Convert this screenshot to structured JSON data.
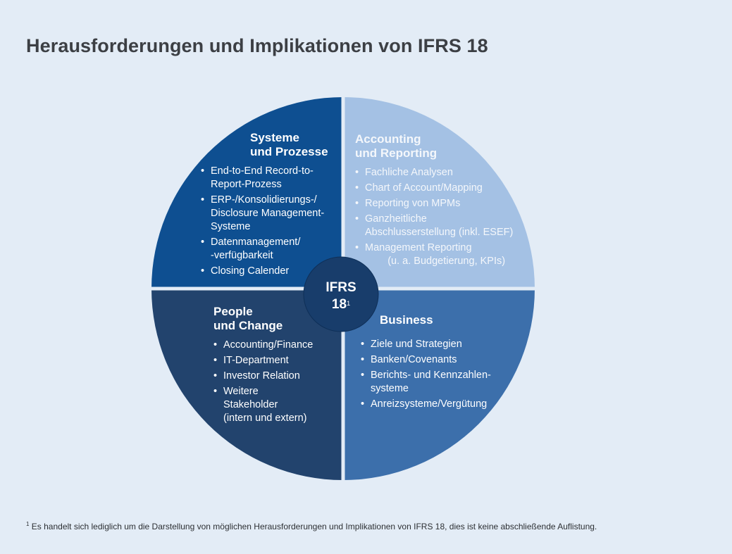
{
  "title": "Herausforderungen und Implikationen von IFRS 18",
  "colors": {
    "background": "#e3ecf6",
    "systeme": "#0e4f91",
    "accounting": "#a4c1e4",
    "people": "#22436d",
    "business": "#3c6fab",
    "center": "#183d6b"
  },
  "center": {
    "label": "IFRS",
    "number": "18",
    "sup": "1"
  },
  "quadrants": {
    "systeme": {
      "heading": [
        "Systeme",
        "und Prozesse"
      ],
      "items": [
        "End-to-End Record-to-\nReport-Prozess",
        "ERP-/Konsolidierungs-/\nDisclosure Management-\nSysteme",
        "Datenmanagement/\n-verfügbarkeit",
        "Closing Calender"
      ]
    },
    "accounting": {
      "heading": [
        "Accounting",
        "und Reporting"
      ],
      "items": [
        "Fachliche Analysen",
        "Chart of Account/Mapping",
        "Reporting von MPMs",
        "Ganzheitliche\nAbschlusserstellung (inkl. ESEF)",
        "Management Reporting\n        (u. a. Budgetierung, KPIs)"
      ]
    },
    "people": {
      "heading": [
        "People",
        "und Change"
      ],
      "items": [
        "Accounting/Finance",
        "IT-Department",
        "Investor Relation",
        "Weitere\nStakeholder\n(intern und extern)"
      ]
    },
    "business": {
      "heading": [
        "Business"
      ],
      "items": [
        "Ziele und Strategien",
        "Banken/Covenants",
        "Berichts- und Kennzahlen-\nsysteme",
        "Anreizsysteme/Vergütung"
      ]
    }
  },
  "footnote": {
    "marker": "1",
    "text": "Es handelt sich lediglich um die Darstellung von möglichen Herausforderungen und Implikationen von IFRS 18, dies ist keine abschließende Auflistung."
  }
}
